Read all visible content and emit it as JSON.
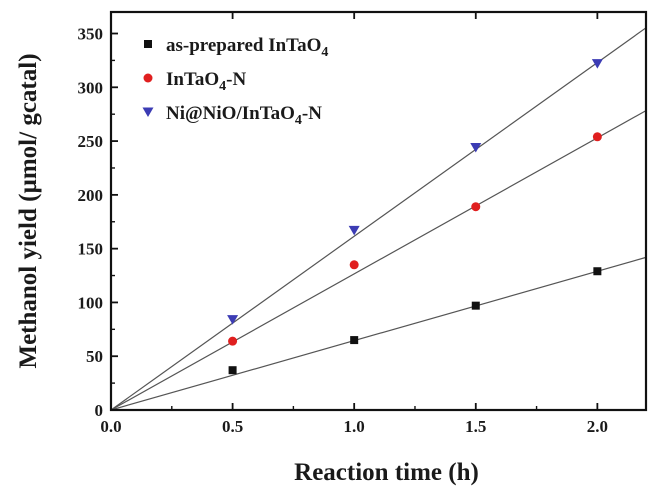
{
  "chart_data": {
    "type": "scatter",
    "xlabel": "Reaction time (h)",
    "ylabel": "Methanol yield (µmol/ gcatal)",
    "xlim": [
      0.0,
      2.2
    ],
    "ylim": [
      0,
      370
    ],
    "x_ticks": [
      "0.0",
      "0.5",
      "1.0",
      "1.5",
      "2.0"
    ],
    "y_ticks": [
      "0",
      "50",
      "100",
      "150",
      "200",
      "250",
      "300",
      "350"
    ],
    "grid": false,
    "legend_position": "top-left",
    "fit_lines": "linear fits through origin for each series",
    "series": [
      {
        "name": "as-prepared InTaO4",
        "label_main": "as-prepared InTaO",
        "label_sub": "4",
        "label_tail": "",
        "marker": "square",
        "color": "#111111",
        "x": [
          0.5,
          1.0,
          1.5,
          2.0
        ],
        "y": [
          37,
          65,
          97,
          129
        ],
        "fit_slope": 64.5
      },
      {
        "name": "InTaO4-N",
        "label_main": "InTaO",
        "label_sub": "4",
        "label_tail": "-N",
        "marker": "circle",
        "color": "#e01f1f",
        "x": [
          0.5,
          1.0,
          1.5,
          2.0
        ],
        "y": [
          64,
          135,
          189,
          254
        ],
        "fit_slope": 126.5
      },
      {
        "name": "Ni@NiO/InTaO4-N",
        "label_main": "Ni@NiO/InTaO",
        "label_sub": "4",
        "label_tail": "-N",
        "marker": "triangle-down",
        "color": "#3c3cb4",
        "x": [
          0.5,
          1.0,
          1.5,
          2.0
        ],
        "y": [
          84,
          167,
          244,
          322
        ],
        "fit_slope": 161.5
      }
    ]
  }
}
